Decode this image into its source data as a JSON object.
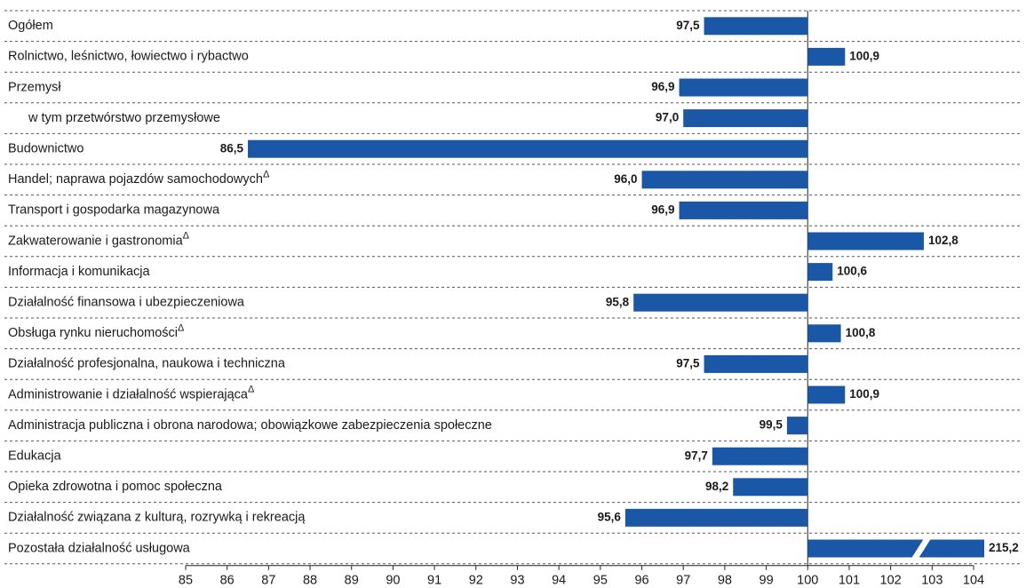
{
  "chart_data": {
    "type": "bar",
    "orientation": "horizontal",
    "color": "#1b57a7",
    "baseline": 100,
    "categories": [
      "Ogółem",
      "Rolnictwo, leśnictwo, łowiectwo i rybactwo",
      "Przemysł",
      "w tym przetwórstwo przemysłowe",
      "Budownictwo",
      "Handel; naprawa pojazdów samochodowychΔ",
      "Transport i gospodarka magazynowa",
      "Zakwaterowanie i gastronomiaΔ",
      "Informacja i komunikacja",
      "Działalność finansowa i ubezpieczeniowa",
      "Obsługa rynku nieruchomościΔ",
      "Działalność profesjonalna, naukowa i techniczna",
      "Administrowanie i działalność wspierającaΔ",
      "Administracja publiczna i obrona narodowa; obowiązkowe zabezpieczenia społeczne",
      "Edukacja",
      "Opieka zdrowotna i pomoc społeczna",
      "Działalność związana z kulturą, rozrywką i rekreacją",
      "Pozostała działalność usługowa"
    ],
    "values": [
      97.5,
      100.9,
      96.9,
      97.0,
      86.5,
      96.0,
      96.9,
      102.8,
      100.6,
      95.8,
      100.8,
      97.5,
      100.9,
      99.5,
      97.7,
      98.2,
      95.6,
      215.2
    ],
    "value_labels": [
      "97,5",
      "100,9",
      "96,9",
      "97,0",
      "86,5",
      "96,0",
      "96,9",
      "102,8",
      "100,6",
      "95,8",
      "100,8",
      "97,5",
      "100,9",
      "99,5",
      "97,7",
      "98,2",
      "95,6",
      "215,2"
    ],
    "xlim": [
      85,
      104
    ],
    "xticks": [
      85,
      86,
      87,
      88,
      89,
      90,
      91,
      92,
      93,
      94,
      95,
      96,
      97,
      98,
      99,
      100,
      101,
      102,
      103,
      104
    ]
  }
}
